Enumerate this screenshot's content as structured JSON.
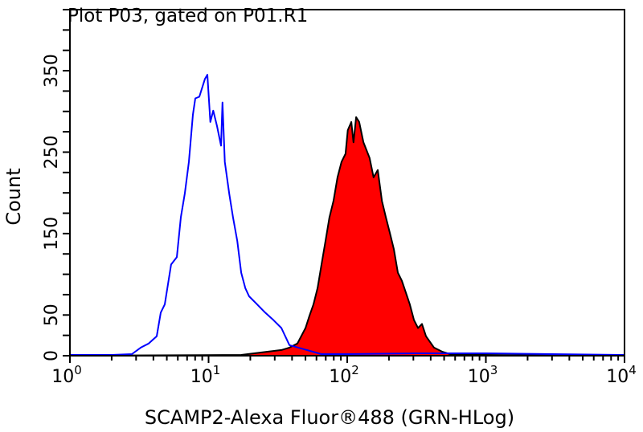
{
  "chart_data": {
    "type": "area",
    "title": "Plot P03, gated on P01.R1",
    "xlabel": "SCAMP2-Alexa Fluor®488 (GRN-HLog)",
    "ylabel": "Count",
    "xscale": "log",
    "xlim": [
      1,
      10000
    ],
    "ylim": [
      0,
      425
    ],
    "x_tick_labels": [
      {
        "base": "10",
        "exp": "0",
        "value": 1
      },
      {
        "base": "10",
        "exp": "1",
        "value": 10
      },
      {
        "base": "10",
        "exp": "2",
        "value": 100
      },
      {
        "base": "10",
        "exp": "3",
        "value": 1000
      },
      {
        "base": "10",
        "exp": "4",
        "value": 10000
      }
    ],
    "y_tick_labels": [
      "0",
      "50",
      "150",
      "250",
      "350"
    ],
    "y_tick_values": [
      0,
      50,
      150,
      250,
      350
    ],
    "y_minor_step": 25,
    "grid": false,
    "series": [
      {
        "style": "outline",
        "color": "#0000ff",
        "x": [
          1,
          2,
          2.8,
          3.24,
          3.7,
          4.23,
          4.52,
          4.83,
          5.37,
          5.9,
          6.31,
          6.74,
          7.21,
          7.71,
          8.02,
          8.58,
          9.42,
          9.8,
          10.3,
          10.8,
          11.5,
          12.3,
          12.6,
          13.1,
          14.1,
          15.0,
          16.1,
          17.2,
          18.4,
          19.6,
          22.4,
          25.6,
          29.3,
          33.5,
          38.3,
          65,
          100,
          300,
          1000,
          3000,
          10000
        ],
        "y": [
          1,
          1,
          2,
          10,
          15,
          24,
          53,
          63,
          112,
          121,
          170,
          199,
          238,
          296,
          316,
          318,
          340,
          345,
          287,
          301,
          282,
          258,
          311,
          238,
          199,
          170,
          141,
          102,
          83,
          73,
          63,
          53,
          44,
          34,
          13,
          2,
          2,
          3,
          3,
          2,
          1
        ]
      },
      {
        "style": "filled",
        "color": "#ff0000",
        "outline": "#000000",
        "x": [
          1,
          17.2,
          33.5,
          38.3,
          43.7,
          50.0,
          53.4,
          57.1,
          61.1,
          65.2,
          69.7,
          74.5,
          79.6,
          85.1,
          91.0,
          97.3,
          101,
          107,
          111,
          116,
          122,
          131,
          145,
          155,
          166,
          178,
          190,
          203,
          217,
          232,
          248,
          283,
          303,
          324,
          346,
          370,
          423,
          483,
          552,
          942,
          10000
        ],
        "y": [
          0,
          1,
          7,
          10,
          15,
          34,
          49,
          63,
          83,
          112,
          141,
          170,
          190,
          219,
          238,
          248,
          277,
          287,
          262,
          293,
          287,
          262,
          243,
          219,
          228,
          190,
          170,
          151,
          131,
          102,
          92,
          63,
          44,
          34,
          39,
          24,
          10,
          5,
          2,
          1,
          0
        ]
      }
    ]
  }
}
